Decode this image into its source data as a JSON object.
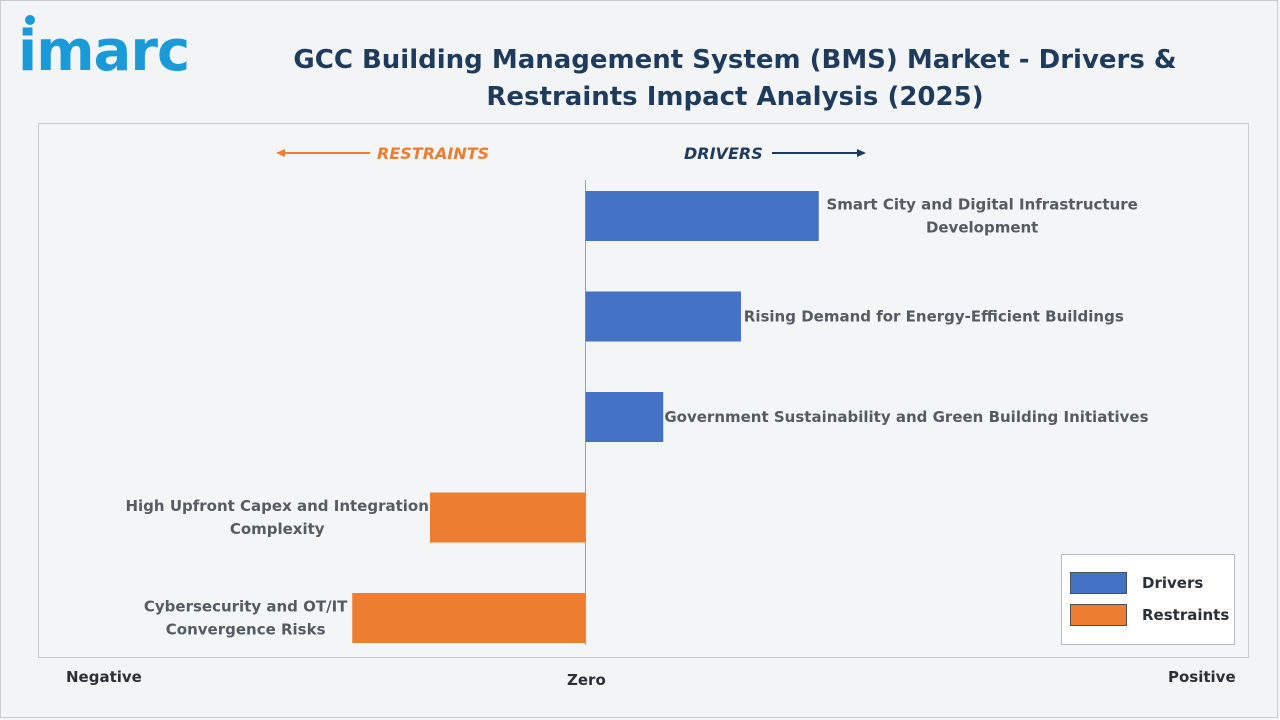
{
  "header": {
    "logo_text": "imarc",
    "title": "GCC Building Management System (BMS) Market - Drivers & Restraints Impact Analysis (2025)"
  },
  "directions": {
    "restraints": "RESTRAINTS",
    "drivers": "DRIVERS"
  },
  "axis": {
    "negative": "Negative",
    "zero": "Zero",
    "positive": "Positive"
  },
  "legend": {
    "drivers": "Drivers",
    "restraints": "Restraints"
  },
  "colors": {
    "drivers": "#4472c4",
    "restraints": "#ed7d31",
    "title": "#1f3b5c",
    "restraints_text": "#ed7d31",
    "drivers_text": "#1f3b5c"
  },
  "chart_data": {
    "type": "bar",
    "orientation": "horizontal",
    "title": "GCC Building Management System (BMS) Market - Drivers & Restraints Impact Analysis (2025)",
    "xlim": [
      -3,
      3
    ],
    "grid": false,
    "legend_position": "bottom-right",
    "categories": [
      "Smart City and Digital Infrastructure Development",
      "Rising Demand for Energy-Efficient Buildings",
      "Government Sustainability and Green Building Initiatives",
      "High Upfront Capex and Integration Complexity",
      "Cybersecurity and OT/IT Convergence Risks"
    ],
    "label_lines": [
      [
        "Smart City and Digital Infrastructure",
        "Development"
      ],
      [
        "Rising Demand for Energy-Efficient Buildings"
      ],
      [
        "Government Sustainability and Green Building Initiatives"
      ],
      [
        "High Upfront Capex and Integration",
        "Complexity"
      ],
      [
        "Cybersecurity and OT/IT",
        "Convergence Risks"
      ]
    ],
    "values": [
      1.5,
      1.0,
      0.5,
      -1.0,
      -1.5
    ],
    "groups": [
      "Drivers",
      "Drivers",
      "Drivers",
      "Restraints",
      "Restraints"
    ]
  }
}
